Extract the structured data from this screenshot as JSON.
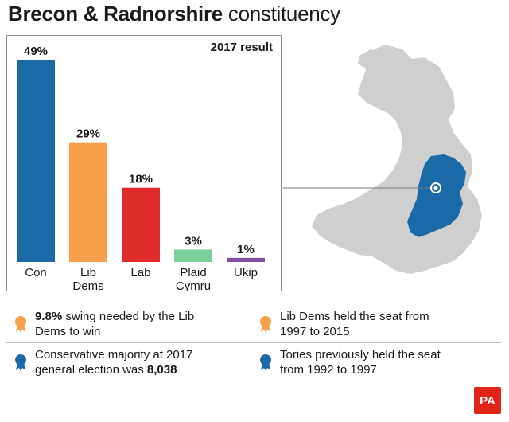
{
  "title": {
    "bold": "Brecon & Radnorshire",
    "rest": "constituency"
  },
  "chart_data": {
    "type": "bar",
    "title": "2017 result",
    "categories": [
      "Con",
      "Lib Dems",
      "Lab",
      "Plaid Cymru",
      "Ukip"
    ],
    "category_lines": [
      [
        "Con"
      ],
      [
        "Lib",
        "Dems"
      ],
      [
        "Lab"
      ],
      [
        "Plaid",
        "Cymru"
      ],
      [
        "Ukip"
      ]
    ],
    "values": [
      49,
      29,
      18,
      3,
      1
    ],
    "data_labels": [
      "49%",
      "29%",
      "18%",
      "3%",
      "1%"
    ],
    "colors": [
      "#1a6aa8",
      "#f7a04b",
      "#e12a2a",
      "#7ccf9a",
      "#7f4fa1"
    ],
    "ylim": [
      0,
      49
    ],
    "unit": "%"
  },
  "map": {
    "land_color": "#cfcfcf",
    "highlight_color": "#1a6aa8",
    "highlight_region": "Brecon & Radnorshire"
  },
  "notes": [
    {
      "bold": "9.8%",
      "text_line1": " swing needed by the Lib",
      "text_line2": "Dems to win",
      "color": "#f7a04b"
    },
    {
      "bold": "",
      "text_line1": "Lib Dems held the seat from",
      "text_line2": "1997 to 2015",
      "color": "#f7a04b"
    },
    {
      "bold": "",
      "text_line1": "Conservative majority at 2017",
      "text_line2": "general election was ",
      "bold_end": "8,038",
      "color": "#1a6aa8"
    },
    {
      "bold": "",
      "text_line1": "Tories previously held the seat",
      "text_line2": "from 1992 to 1997",
      "color": "#1a6aa8"
    }
  ],
  "logo": "PA"
}
